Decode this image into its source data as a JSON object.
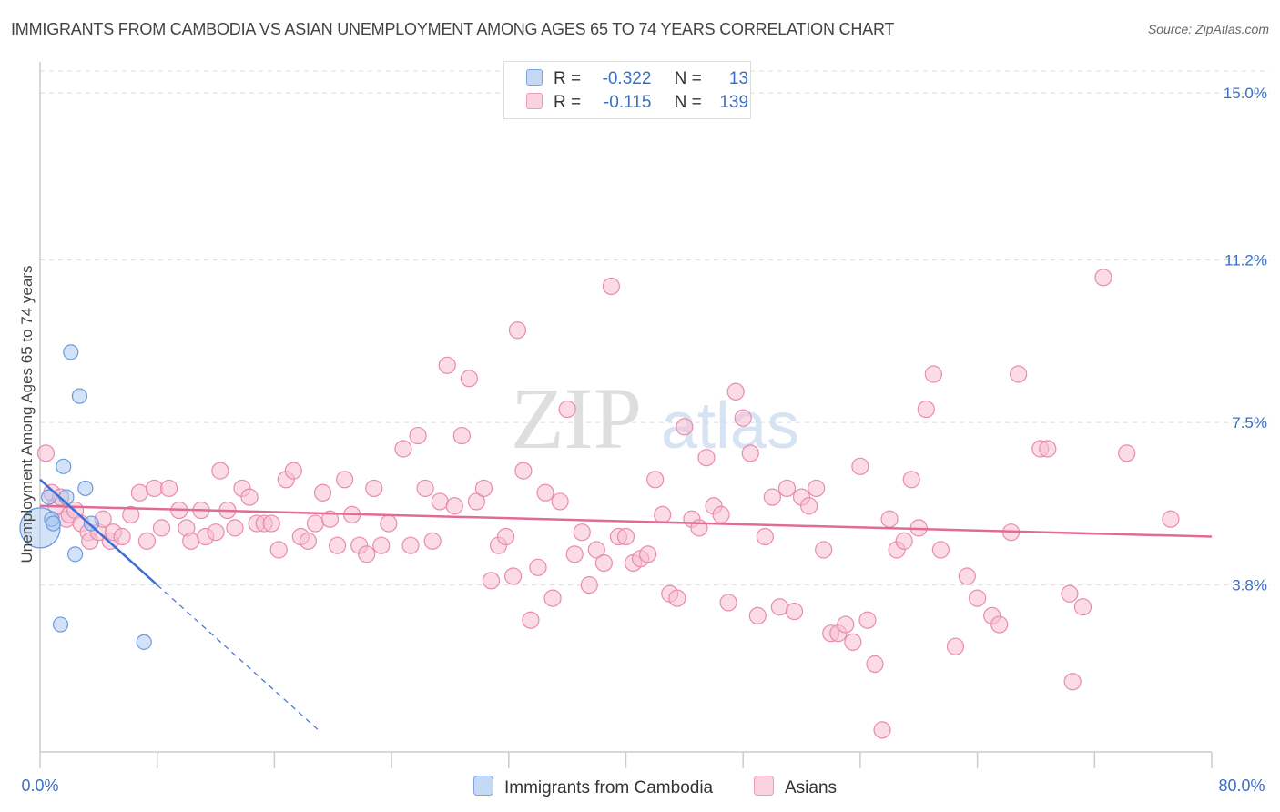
{
  "title": "IMMIGRANTS FROM CAMBODIA VS ASIAN UNEMPLOYMENT AMONG AGES 65 TO 74 YEARS CORRELATION CHART",
  "source": "Source: ZipAtlas.com",
  "watermark": {
    "zip": "ZIP",
    "atlas": "atlas"
  },
  "legend": {
    "r_label": "R =",
    "n_label": "N =",
    "series": [
      {
        "r": "-0.322",
        "n": "13",
        "color": "#a9c6f0",
        "border": "#6a9ae0"
      },
      {
        "r": "-0.115",
        "n": "139",
        "color": "#f7c0d2",
        "border": "#e98bab"
      }
    ]
  },
  "colors": {
    "blue_line": "#3a6fd6",
    "pink_line": "#e06a98",
    "tick_text": "#3a6fc4"
  },
  "chart_data": {
    "type": "scatter",
    "title": "IMMIGRANTS FROM CAMBODIA VS ASIAN UNEMPLOYMENT AMONG AGES 65 TO 74 YEARS CORRELATION CHART",
    "xlabel": "",
    "ylabel": "Unemployment Among Ages 65 to 74 years",
    "xlim": [
      0,
      80
    ],
    "ylim": [
      0,
      15.5
    ],
    "x_tick_labels": [
      "0.0%",
      "80.0%"
    ],
    "y_ticks": [
      3.8,
      7.5,
      11.2,
      15.0
    ],
    "y_tick_labels": [
      "3.8%",
      "7.5%",
      "11.2%",
      "15.0%"
    ],
    "grid": "horizontal dashed",
    "legend_position": "bottom-center",
    "series": [
      {
        "name": "Immigrants from Cambodia",
        "color": "#a9c6f0",
        "trend": {
          "x": [
            0,
            8
          ],
          "y": [
            6.2,
            3.8
          ],
          "extended_to_x": 19
        },
        "points": [
          {
            "x": 0.0,
            "y": 5.1,
            "big": true
          },
          {
            "x": 0.6,
            "y": 5.8
          },
          {
            "x": 0.8,
            "y": 5.3
          },
          {
            "x": 0.9,
            "y": 5.2
          },
          {
            "x": 1.4,
            "y": 2.9
          },
          {
            "x": 1.6,
            "y": 6.5
          },
          {
            "x": 1.8,
            "y": 5.8
          },
          {
            "x": 2.1,
            "y": 9.1
          },
          {
            "x": 2.4,
            "y": 4.5
          },
          {
            "x": 2.7,
            "y": 8.1
          },
          {
            "x": 3.1,
            "y": 6.0
          },
          {
            "x": 3.5,
            "y": 5.2
          },
          {
            "x": 7.1,
            "y": 2.5
          }
        ]
      },
      {
        "name": "Asians",
        "color": "#f7c0d2",
        "trend": {
          "x": [
            0,
            80
          ],
          "y": [
            5.6,
            4.9
          ]
        },
        "points": [
          {
            "x": 0.4,
            "y": 6.8
          },
          {
            "x": 0.8,
            "y": 5.9
          },
          {
            "x": 1.1,
            "y": 5.6
          },
          {
            "x": 1.4,
            "y": 5.8
          },
          {
            "x": 1.8,
            "y": 5.3
          },
          {
            "x": 2.0,
            "y": 5.4
          },
          {
            "x": 2.4,
            "y": 5.5
          },
          {
            "x": 2.8,
            "y": 5.2
          },
          {
            "x": 3.3,
            "y": 5.0
          },
          {
            "x": 3.4,
            "y": 4.8
          },
          {
            "x": 4.0,
            "y": 5.0
          },
          {
            "x": 4.3,
            "y": 5.3
          },
          {
            "x": 4.8,
            "y": 4.8
          },
          {
            "x": 5.0,
            "y": 5.0
          },
          {
            "x": 5.6,
            "y": 4.9
          },
          {
            "x": 6.2,
            "y": 5.4
          },
          {
            "x": 6.8,
            "y": 5.9
          },
          {
            "x": 7.3,
            "y": 4.8
          },
          {
            "x": 7.8,
            "y": 6.0
          },
          {
            "x": 8.3,
            "y": 5.1
          },
          {
            "x": 8.8,
            "y": 6.0
          },
          {
            "x": 9.5,
            "y": 5.5
          },
          {
            "x": 10.0,
            "y": 5.1
          },
          {
            "x": 10.3,
            "y": 4.8
          },
          {
            "x": 11.0,
            "y": 5.5
          },
          {
            "x": 11.3,
            "y": 4.9
          },
          {
            "x": 12.0,
            "y": 5.0
          },
          {
            "x": 12.3,
            "y": 6.4
          },
          {
            "x": 12.8,
            "y": 5.5
          },
          {
            "x": 13.3,
            "y": 5.1
          },
          {
            "x": 13.8,
            "y": 6.0
          },
          {
            "x": 14.3,
            "y": 5.8
          },
          {
            "x": 14.8,
            "y": 5.2
          },
          {
            "x": 15.3,
            "y": 5.2
          },
          {
            "x": 15.8,
            "y": 5.2
          },
          {
            "x": 16.3,
            "y": 4.6
          },
          {
            "x": 16.8,
            "y": 6.2
          },
          {
            "x": 17.3,
            "y": 6.4
          },
          {
            "x": 17.8,
            "y": 4.9
          },
          {
            "x": 18.3,
            "y": 4.8
          },
          {
            "x": 18.8,
            "y": 5.2
          },
          {
            "x": 19.3,
            "y": 5.9
          },
          {
            "x": 19.8,
            "y": 5.3
          },
          {
            "x": 20.3,
            "y": 4.7
          },
          {
            "x": 20.8,
            "y": 6.2
          },
          {
            "x": 21.3,
            "y": 5.4
          },
          {
            "x": 21.8,
            "y": 4.7
          },
          {
            "x": 22.3,
            "y": 4.5
          },
          {
            "x": 22.8,
            "y": 6.0
          },
          {
            "x": 23.3,
            "y": 4.7
          },
          {
            "x": 23.8,
            "y": 5.2
          },
          {
            "x": 24.8,
            "y": 6.9
          },
          {
            "x": 25.3,
            "y": 4.7
          },
          {
            "x": 25.8,
            "y": 7.2
          },
          {
            "x": 26.3,
            "y": 6.0
          },
          {
            "x": 26.8,
            "y": 4.8
          },
          {
            "x": 27.3,
            "y": 5.7
          },
          {
            "x": 27.8,
            "y": 8.8
          },
          {
            "x": 28.3,
            "y": 5.6
          },
          {
            "x": 28.8,
            "y": 7.2
          },
          {
            "x": 29.3,
            "y": 8.5
          },
          {
            "x": 29.8,
            "y": 5.7
          },
          {
            "x": 30.3,
            "y": 6.0
          },
          {
            "x": 30.8,
            "y": 3.9
          },
          {
            "x": 31.3,
            "y": 4.7
          },
          {
            "x": 31.8,
            "y": 4.9
          },
          {
            "x": 32.3,
            "y": 4.0
          },
          {
            "x": 32.6,
            "y": 9.6
          },
          {
            "x": 33.0,
            "y": 6.4
          },
          {
            "x": 33.5,
            "y": 3.0
          },
          {
            "x": 34.0,
            "y": 4.2
          },
          {
            "x": 34.5,
            "y": 5.9
          },
          {
            "x": 35.0,
            "y": 3.5
          },
          {
            "x": 35.5,
            "y": 5.7
          },
          {
            "x": 36.0,
            "y": 7.8
          },
          {
            "x": 36.5,
            "y": 4.5
          },
          {
            "x": 37.0,
            "y": 5.0
          },
          {
            "x": 37.5,
            "y": 3.8
          },
          {
            "x": 38.0,
            "y": 4.6
          },
          {
            "x": 38.5,
            "y": 4.3
          },
          {
            "x": 39.0,
            "y": 10.6
          },
          {
            "x": 39.5,
            "y": 4.9
          },
          {
            "x": 40.0,
            "y": 4.9
          },
          {
            "x": 40.5,
            "y": 4.3
          },
          {
            "x": 41.0,
            "y": 4.4
          },
          {
            "x": 41.5,
            "y": 4.5
          },
          {
            "x": 42.0,
            "y": 6.2
          },
          {
            "x": 42.5,
            "y": 5.4
          },
          {
            "x": 43.0,
            "y": 3.6
          },
          {
            "x": 43.5,
            "y": 3.5
          },
          {
            "x": 44.0,
            "y": 7.4
          },
          {
            "x": 44.5,
            "y": 5.3
          },
          {
            "x": 45.0,
            "y": 5.1
          },
          {
            "x": 45.5,
            "y": 6.7
          },
          {
            "x": 46.0,
            "y": 5.6
          },
          {
            "x": 46.5,
            "y": 5.4
          },
          {
            "x": 47.0,
            "y": 3.4
          },
          {
            "x": 47.5,
            "y": 8.2
          },
          {
            "x": 48.0,
            "y": 7.6
          },
          {
            "x": 48.5,
            "y": 6.8
          },
          {
            "x": 49.0,
            "y": 3.1
          },
          {
            "x": 49.5,
            "y": 4.9
          },
          {
            "x": 50.0,
            "y": 5.8
          },
          {
            "x": 50.5,
            "y": 3.3
          },
          {
            "x": 51.0,
            "y": 6.0
          },
          {
            "x": 51.5,
            "y": 3.2
          },
          {
            "x": 52.0,
            "y": 5.8
          },
          {
            "x": 52.5,
            "y": 5.6
          },
          {
            "x": 53.0,
            "y": 6.0
          },
          {
            "x": 53.5,
            "y": 4.6
          },
          {
            "x": 54.0,
            "y": 2.7
          },
          {
            "x": 54.5,
            "y": 2.7
          },
          {
            "x": 55.0,
            "y": 2.9
          },
          {
            "x": 55.5,
            "y": 2.5
          },
          {
            "x": 56.0,
            "y": 6.5
          },
          {
            "x": 56.5,
            "y": 3.0
          },
          {
            "x": 57.0,
            "y": 2.0
          },
          {
            "x": 57.5,
            "y": 0.5
          },
          {
            "x": 58.0,
            "y": 5.3
          },
          {
            "x": 58.5,
            "y": 4.6
          },
          {
            "x": 59.0,
            "y": 4.8
          },
          {
            "x": 59.5,
            "y": 6.2
          },
          {
            "x": 60.0,
            "y": 5.1
          },
          {
            "x": 60.5,
            "y": 7.8
          },
          {
            "x": 61.0,
            "y": 8.6
          },
          {
            "x": 61.5,
            "y": 4.6
          },
          {
            "x": 62.5,
            "y": 2.4
          },
          {
            "x": 63.3,
            "y": 4.0
          },
          {
            "x": 64.0,
            "y": 3.5
          },
          {
            "x": 65.0,
            "y": 3.1
          },
          {
            "x": 65.5,
            "y": 2.9
          },
          {
            "x": 66.3,
            "y": 5.0
          },
          {
            "x": 66.8,
            "y": 8.6
          },
          {
            "x": 68.3,
            "y": 6.9
          },
          {
            "x": 68.8,
            "y": 6.9
          },
          {
            "x": 70.3,
            "y": 3.6
          },
          {
            "x": 70.5,
            "y": 1.6
          },
          {
            "x": 71.2,
            "y": 3.3
          },
          {
            "x": 72.6,
            "y": 10.8
          },
          {
            "x": 74.2,
            "y": 6.8
          },
          {
            "x": 77.2,
            "y": 5.3
          }
        ]
      }
    ]
  }
}
